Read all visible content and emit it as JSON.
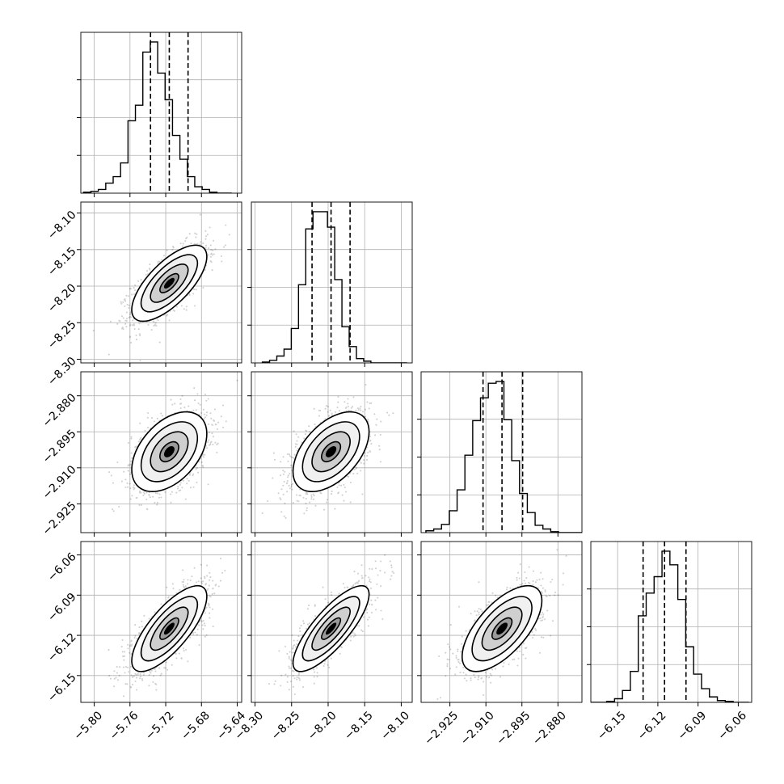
{
  "chart_data": {
    "type": "corner",
    "grid": true,
    "colors": {
      "line": "#000000",
      "grid": "#b0b0b0",
      "background": "#ffffff",
      "density_fill": "#ffffff"
    },
    "contour_levels_sigma": [
      0.5,
      1.0,
      1.5,
      2.0
    ],
    "parameters": [
      {
        "id": "p1",
        "range": [
          -5.815,
          -5.635
        ],
        "ticks": [
          -5.8,
          -5.76,
          -5.72,
          -5.68,
          -5.64
        ],
        "tick_labels": [
          "−5.80",
          "−5.76",
          "−5.72",
          "−5.68",
          "−5.64"
        ],
        "quantiles": [
          -5.737,
          -5.716,
          -5.695
        ],
        "mean": -5.716,
        "std": 0.021,
        "hist": {
          "edges": [
            -5.812,
            -5.8037,
            -5.7954,
            -5.7871,
            -5.7788,
            -5.7705,
            -5.7622,
            -5.7539,
            -5.7456,
            -5.7373,
            -5.729,
            -5.7207,
            -5.7124,
            -5.7041,
            -5.6958,
            -5.6875,
            -5.6792,
            -5.6709,
            -5.6626,
            -5.6543,
            -5.646
          ],
          "counts": [
            1,
            2,
            4,
            11,
            18,
            33,
            79,
            96,
            154,
            165,
            131,
            102,
            63,
            37,
            18,
            7,
            4,
            1,
            0,
            0
          ],
          "peak_axis_fraction": 0.94
        }
      },
      {
        "id": "p2",
        "range": [
          -8.305,
          -8.085
        ],
        "ticks": [
          -8.3,
          -8.25,
          -8.2,
          -8.15,
          -8.1
        ],
        "tick_labels": [
          "−8.30",
          "−8.25",
          "−8.20",
          "−8.15",
          "−8.10"
        ],
        "quantiles": [
          -8.222,
          -8.196,
          -8.17
        ],
        "mean": -8.196,
        "std": 0.026,
        "hist": {
          "edges": [
            -8.29,
            -8.2801,
            -8.2702,
            -8.2603,
            -8.2504,
            -8.2405,
            -8.2306,
            -8.2207,
            -8.2108,
            -8.2009,
            -8.191,
            -8.1811,
            -8.1712,
            -8.1613,
            -8.1514,
            -8.1415,
            -8.1316,
            -8.1217,
            -8.1118,
            -8.1019,
            -8.092
          ],
          "counts": [
            1,
            3,
            8,
            16,
            40,
            91,
            156,
            176,
            176,
            158,
            97,
            42,
            19,
            5,
            2,
            0,
            0,
            0,
            0,
            0
          ],
          "peak_axis_fraction": 0.94
        }
      },
      {
        "id": "p3",
        "range": [
          -2.937,
          -2.87
        ],
        "ticks": [
          -2.925,
          -2.91,
          -2.895,
          -2.88
        ],
        "tick_labels": [
          "−2.925",
          "−2.910",
          "−2.895",
          "−2.880"
        ],
        "quantiles": [
          -2.9112,
          -2.9033,
          -2.8947
        ],
        "mean": -2.9033,
        "std": 0.0083,
        "hist": {
          "edges": [
            -2.935,
            -2.93175,
            -2.9285,
            -2.92525,
            -2.922,
            -2.91875,
            -2.9155,
            -2.91225,
            -2.909,
            -2.90575,
            -2.9025,
            -2.89925,
            -2.896,
            -2.89275,
            -2.8895,
            -2.88625,
            -2.883,
            -2.87975,
            -2.8765,
            -2.87325,
            -2.87
          ],
          "counts": [
            2,
            4,
            9,
            24,
            47,
            85,
            123,
            148,
            164,
            166,
            124,
            79,
            43,
            22,
            8,
            4,
            1,
            0,
            0,
            0
          ],
          "peak_axis_fraction": 0.94
        }
      },
      {
        "id": "p4",
        "range": [
          -6.17,
          -6.05
        ],
        "ticks": [
          -6.15,
          -6.12,
          -6.09,
          -6.06
        ],
        "tick_labels": [
          "−6.15",
          "−6.12",
          "−6.09",
          "−6.06"
        ],
        "quantiles": [
          -6.131,
          -6.115,
          -6.099
        ],
        "mean": -6.115,
        "std": 0.016,
        "hist": {
          "edges": [
            -6.17,
            -6.1641,
            -6.1582,
            -6.1523,
            -6.1464,
            -6.1405,
            -6.1346,
            -6.1287,
            -6.1228,
            -6.1169,
            -6.111,
            -6.1051,
            -6.0992,
            -6.0933,
            -6.0874,
            -6.0815,
            -6.0756,
            -6.0697,
            -6.0638,
            -6.0579,
            -6.052
          ],
          "counts": [
            0,
            0,
            1,
            4,
            13,
            34,
            95,
            120,
            138,
            166,
            151,
            113,
            61,
            31,
            15,
            6,
            2,
            1,
            0,
            0
          ],
          "peak_axis_fraction": 0.94
        }
      }
    ],
    "correlations": [
      {
        "x": "p1",
        "y": "p2",
        "rho": 0.7
      },
      {
        "x": "p1",
        "y": "p3",
        "rho": 0.45
      },
      {
        "x": "p2",
        "y": "p3",
        "rho": 0.5
      },
      {
        "x": "p1",
        "y": "p4",
        "rho": 0.75
      },
      {
        "x": "p2",
        "y": "p4",
        "rho": 0.8
      },
      {
        "x": "p3",
        "y": "p4",
        "rho": 0.65
      }
    ]
  }
}
